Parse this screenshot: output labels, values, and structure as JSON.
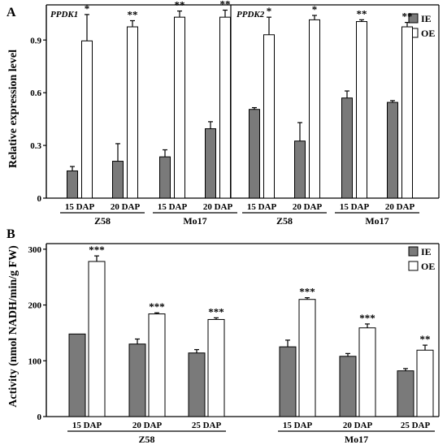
{
  "colors": {
    "ie": "#7a7a7a",
    "oe": "#ffffff",
    "stroke": "#000000"
  },
  "chart_data": [
    {
      "type": "bar",
      "panel": "A",
      "ylabel": "Relative expression level",
      "ylim": [
        0,
        1.1
      ],
      "yticks": [
        0,
        0.3,
        0.6,
        0.9
      ],
      "ytick_labels": [
        "0",
        "0.3",
        "0.6",
        "0.9"
      ],
      "legend": {
        "placement": "top-right",
        "entries": [
          "IE",
          "OE"
        ]
      },
      "series_names": [
        "IE",
        "OE"
      ],
      "subpanels": [
        {
          "title": "PPDK1",
          "categories": [
            "15 DAP",
            "20 DAP",
            "15 DAP",
            "20 DAP"
          ],
          "groups": [
            {
              "label": "Z58",
              "span": [
                0,
                1
              ]
            },
            {
              "label": "Mo17",
              "span": [
                2,
                3
              ]
            }
          ],
          "series": [
            {
              "name": "IE",
              "values": [
                0.155,
                0.21,
                0.235,
                0.395
              ],
              "errors": [
                0.025,
                0.1,
                0.04,
                0.04
              ]
            },
            {
              "name": "OE",
              "values": [
                0.895,
                0.975,
                1.03,
                1.03
              ],
              "errors": [
                0.15,
                0.035,
                0.035,
                0.04
              ]
            }
          ],
          "significance": [
            "*",
            "**",
            "**",
            "**"
          ]
        },
        {
          "title": "PPDK2",
          "categories": [
            "15 DAP",
            "20 DAP",
            "15 DAP",
            "20 DAP"
          ],
          "groups": [
            {
              "label": "Z58",
              "span": [
                0,
                1
              ]
            },
            {
              "label": "Mo17",
              "span": [
                2,
                3
              ]
            }
          ],
          "series": [
            {
              "name": "IE",
              "values": [
                0.505,
                0.325,
                0.57,
                0.545
              ],
              "errors": [
                0.01,
                0.105,
                0.04,
                0.01
              ]
            },
            {
              "name": "OE",
              "values": [
                0.93,
                1.015,
                1.005,
                0.975
              ],
              "errors": [
                0.1,
                0.025,
                0.01,
                0.025
              ]
            }
          ],
          "significance": [
            "*",
            "*",
            "**",
            "**"
          ]
        }
      ]
    },
    {
      "type": "bar",
      "panel": "B",
      "ylabel": "Activity (nmol NADH/min/g FW)",
      "ylim": [
        0,
        310
      ],
      "yticks": [
        0,
        100,
        200,
        300
      ],
      "ytick_labels": [
        "0",
        "100",
        "200",
        "300"
      ],
      "legend": {
        "placement": "top-right",
        "entries": [
          "IE",
          "OE"
        ]
      },
      "series_names": [
        "IE",
        "OE"
      ],
      "categories": [
        "15 DAP",
        "20 DAP",
        "25 DAP",
        "15 DAP",
        "20 DAP",
        "25 DAP"
      ],
      "groups": [
        {
          "label": "Z58",
          "span": [
            0,
            2
          ]
        },
        {
          "label": "Mo17",
          "span": [
            3,
            5
          ]
        }
      ],
      "series": [
        {
          "name": "IE",
          "values": [
            148,
            130,
            114,
            125,
            108,
            82
          ],
          "errors": [
            0,
            9,
            6,
            12,
            5,
            4
          ]
        },
        {
          "name": "OE",
          "values": [
            278,
            184,
            174,
            210,
            159,
            119
          ],
          "errors": [
            10,
            2,
            3,
            3,
            7,
            9
          ]
        }
      ],
      "significance": [
        "***",
        "***",
        "***",
        "***",
        "***",
        "**"
      ]
    }
  ]
}
